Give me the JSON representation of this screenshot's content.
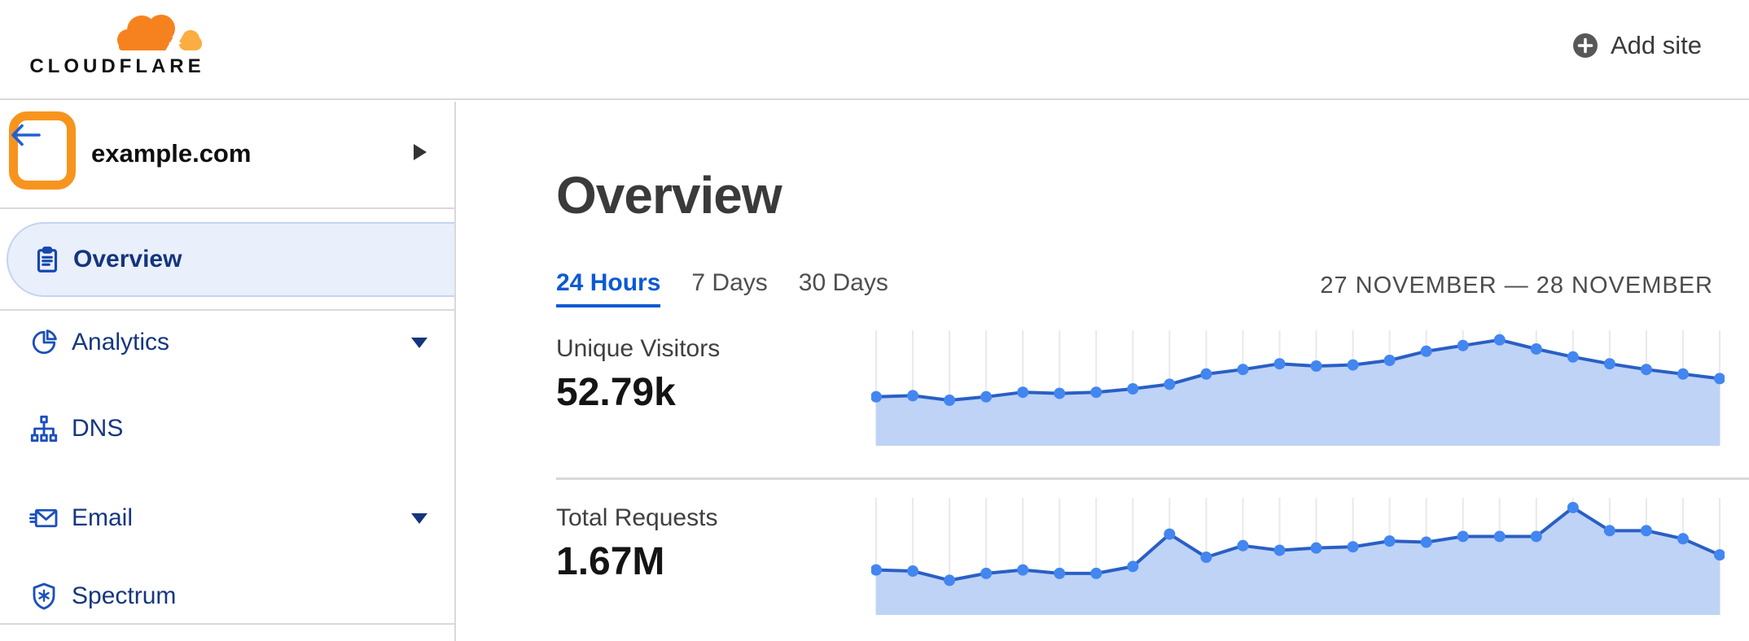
{
  "header": {
    "brand": "CLOUDFLARE",
    "add_site": "Add site"
  },
  "sidebar": {
    "site": "example.com",
    "items": [
      {
        "label": "Overview",
        "selected": true,
        "expandable": false
      },
      {
        "label": "Analytics",
        "selected": false,
        "expandable": true
      },
      {
        "label": "DNS",
        "selected": false,
        "expandable": false
      },
      {
        "label": "Email",
        "selected": false,
        "expandable": true
      },
      {
        "label": "Spectrum",
        "selected": false,
        "expandable": false
      }
    ]
  },
  "main": {
    "title": "Overview",
    "tabs": [
      {
        "label": "24 Hours",
        "active": true
      },
      {
        "label": "7 Days",
        "active": false
      },
      {
        "label": "30 Days",
        "active": false
      }
    ],
    "date_range": "27 NOVEMBER — 28 NOVEMBER",
    "metrics": [
      {
        "label": "Unique Visitors",
        "value": "52.79k"
      },
      {
        "label": "Total Requests",
        "value": "1.67M"
      }
    ]
  },
  "colors": {
    "brand_orange": "#F6821F",
    "brand_orange_light": "#FBAD41",
    "annotation_orange": "#F7941E",
    "link_blue": "#0A5AD4",
    "sidebar_navy": "#16377F",
    "icon_blue": "#1B50BB",
    "selected_bg": "#E9EFFB",
    "selected_border": "#C3D4F2",
    "divider": "#D9D9D9",
    "text_dark": "#3A3A3A"
  },
  "chart_data": [
    {
      "type": "area",
      "series_name": "Unique Visitors",
      "total": "52.79k",
      "x_points": 24,
      "x_range": [
        "27 November",
        "28 November"
      ],
      "x_tick_labels": "none shown",
      "y_axis": "unlabeled; values are relative heights in % of plot height",
      "values": [
        43,
        44,
        40,
        43,
        47,
        46,
        47,
        50,
        54,
        63,
        67,
        72,
        70,
        71,
        75,
        83,
        88,
        93,
        85,
        78,
        72,
        67,
        63,
        59
      ],
      "grid": "vertical gridline at each point",
      "legend": "none",
      "colors": {
        "line": "#2A5FC4",
        "dot": "#4386F0",
        "fill": "#BED3F6",
        "grid": "#E9E9EC"
      }
    },
    {
      "type": "area",
      "series_name": "Total Requests",
      "total": "1.67M",
      "x_points": 24,
      "x_range": [
        "27 November",
        "28 November"
      ],
      "x_tick_labels": "none shown",
      "y_axis": "unlabeled; values are relative heights in % of plot height",
      "values": [
        39,
        38,
        30,
        36,
        39,
        36,
        36,
        42,
        70,
        50,
        60,
        56,
        58,
        59,
        64,
        63,
        68,
        68,
        68,
        93,
        73,
        73,
        66,
        52
      ],
      "grid": "vertical gridline at each point",
      "legend": "none",
      "colors": {
        "line": "#2A5FC4",
        "dot": "#4386F0",
        "fill": "#BED3F6",
        "grid": "#E9E9EC"
      }
    }
  ]
}
